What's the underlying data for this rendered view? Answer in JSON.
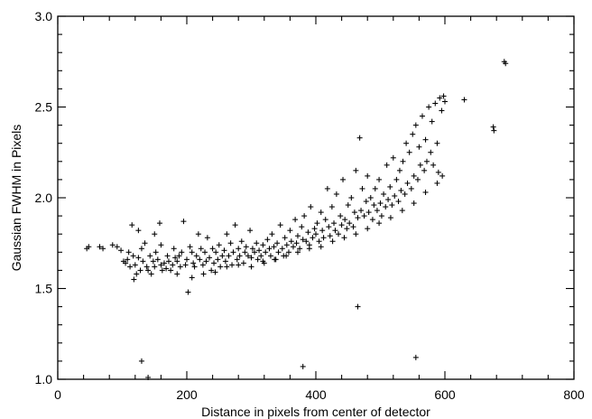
{
  "chart_data": {
    "type": "scatter",
    "title": "",
    "xlabel": "Distance in pixels from center of detector",
    "ylabel": "Gaussian FWHM in Pixels",
    "xlim": [
      0,
      800
    ],
    "ylim": [
      1.0,
      3.0
    ],
    "xticks": [
      0,
      200,
      400,
      600,
      800
    ],
    "yticks": [
      1.0,
      1.5,
      2.0,
      2.5,
      3.0
    ],
    "ytick_labels": [
      "1.0",
      "1.5",
      "2.0",
      "2.5",
      "3.0"
    ],
    "marker": "+",
    "grid": false,
    "legend": "none",
    "colors": {
      "points": "#000000",
      "axes": "#000000",
      "background": "#ffffff"
    },
    "points": [
      [
        45,
        1.72
      ],
      [
        48,
        1.73
      ],
      [
        65,
        1.73
      ],
      [
        70,
        1.72
      ],
      [
        85,
        1.74
      ],
      [
        92,
        1.73
      ],
      [
        98,
        1.71
      ],
      [
        102,
        1.65
      ],
      [
        105,
        1.64
      ],
      [
        108,
        1.66
      ],
      [
        110,
        1.7
      ],
      [
        112,
        1.62
      ],
      [
        115,
        1.85
      ],
      [
        117,
        1.68
      ],
      [
        118,
        1.55
      ],
      [
        120,
        1.63
      ],
      [
        122,
        1.58
      ],
      [
        125,
        1.67
      ],
      [
        128,
        1.6
      ],
      [
        130,
        1.72
      ],
      [
        132,
        1.65
      ],
      [
        135,
        1.75
      ],
      [
        138,
        1.62
      ],
      [
        140,
        1.6
      ],
      [
        143,
        1.68
      ],
      [
        145,
        1.58
      ],
      [
        148,
        1.65
      ],
      [
        150,
        1.62
      ],
      [
        152,
        1.7
      ],
      [
        155,
        1.66
      ],
      [
        158,
        1.86
      ],
      [
        160,
        1.63
      ],
      [
        162,
        1.6
      ],
      [
        165,
        1.64
      ],
      [
        168,
        1.61
      ],
      [
        170,
        1.68
      ],
      [
        172,
        1.65
      ],
      [
        175,
        1.6
      ],
      [
        178,
        1.63
      ],
      [
        180,
        1.72
      ],
      [
        182,
        1.67
      ],
      [
        185,
        1.65
      ],
      [
        188,
        1.68
      ],
      [
        190,
        1.62
      ],
      [
        192,
        1.7
      ],
      [
        195,
        1.87
      ],
      [
        198,
        1.63
      ],
      [
        200,
        1.66
      ],
      [
        202,
        1.48
      ],
      [
        205,
        1.73
      ],
      [
        208,
        1.7
      ],
      [
        210,
        1.64
      ],
      [
        212,
        1.62
      ],
      [
        215,
        1.68
      ],
      [
        218,
        1.8
      ],
      [
        220,
        1.66
      ],
      [
        222,
        1.72
      ],
      [
        225,
        1.63
      ],
      [
        228,
        1.7
      ],
      [
        230,
        1.65
      ],
      [
        232,
        1.78
      ],
      [
        235,
        1.67
      ],
      [
        238,
        1.6
      ],
      [
        240,
        1.72
      ],
      [
        242,
        1.64
      ],
      [
        245,
        1.7
      ],
      [
        248,
        1.66
      ],
      [
        250,
        1.74
      ],
      [
        252,
        1.62
      ],
      [
        255,
        1.68
      ],
      [
        258,
        1.71
      ],
      [
        260,
        1.65
      ],
      [
        262,
        1.8
      ],
      [
        265,
        1.68
      ],
      [
        268,
        1.75
      ],
      [
        270,
        1.63
      ],
      [
        272,
        1.7
      ],
      [
        275,
        1.85
      ],
      [
        278,
        1.66
      ],
      [
        280,
        1.72
      ],
      [
        282,
        1.68
      ],
      [
        285,
        1.76
      ],
      [
        288,
        1.64
      ],
      [
        290,
        1.7
      ],
      [
        292,
        1.73
      ],
      [
        295,
        1.68
      ],
      [
        298,
        1.82
      ],
      [
        300,
        1.67
      ],
      [
        302,
        1.72
      ],
      [
        305,
        1.7
      ],
      [
        308,
        1.75
      ],
      [
        310,
        1.66
      ],
      [
        312,
        1.71
      ],
      [
        315,
        1.68
      ],
      [
        318,
        1.74
      ],
      [
        320,
        1.64
      ],
      [
        322,
        1.7
      ],
      [
        325,
        1.77
      ],
      [
        328,
        1.72
      ],
      [
        330,
        1.68
      ],
      [
        332,
        1.8
      ],
      [
        335,
        1.73
      ],
      [
        338,
        1.66
      ],
      [
        340,
        1.75
      ],
      [
        342,
        1.7
      ],
      [
        345,
        1.85
      ],
      [
        348,
        1.72
      ],
      [
        350,
        1.68
      ],
      [
        352,
        1.78
      ],
      [
        355,
        1.74
      ],
      [
        358,
        1.7
      ],
      [
        360,
        1.82
      ],
      [
        362,
        1.76
      ],
      [
        365,
        1.73
      ],
      [
        368,
        1.88
      ],
      [
        370,
        1.75
      ],
      [
        372,
        1.79
      ],
      [
        375,
        1.72
      ],
      [
        378,
        1.84
      ],
      [
        380,
        1.77
      ],
      [
        382,
        1.9
      ],
      [
        385,
        1.76
      ],
      [
        388,
        1.81
      ],
      [
        390,
        1.74
      ],
      [
        392,
        1.95
      ],
      [
        395,
        1.78
      ],
      [
        398,
        1.83
      ],
      [
        400,
        1.8
      ],
      [
        402,
        1.86
      ],
      [
        405,
        1.76
      ],
      [
        408,
        1.92
      ],
      [
        410,
        1.82
      ],
      [
        412,
        1.78
      ],
      [
        415,
        1.88
      ],
      [
        418,
        2.05
      ],
      [
        420,
        1.84
      ],
      [
        422,
        1.79
      ],
      [
        425,
        1.95
      ],
      [
        428,
        1.86
      ],
      [
        430,
        1.82
      ],
      [
        432,
        2.02
      ],
      [
        435,
        1.8
      ],
      [
        438,
        1.9
      ],
      [
        440,
        1.85
      ],
      [
        442,
        2.1
      ],
      [
        445,
        1.88
      ],
      [
        448,
        1.83
      ],
      [
        450,
        1.96
      ],
      [
        452,
        1.86
      ],
      [
        455,
        2.0
      ],
      [
        458,
        1.84
      ],
      [
        460,
        1.92
      ],
      [
        462,
        2.15
      ],
      [
        465,
        1.89
      ],
      [
        468,
        2.33
      ],
      [
        470,
        1.93
      ],
      [
        472,
        2.05
      ],
      [
        475,
        1.9
      ],
      [
        478,
        1.98
      ],
      [
        480,
        2.12
      ],
      [
        482,
        1.92
      ],
      [
        485,
        2.0
      ],
      [
        488,
        1.88
      ],
      [
        490,
        1.96
      ],
      [
        492,
        2.05
      ],
      [
        495,
        1.93
      ],
      [
        498,
        2.1
      ],
      [
        500,
        1.97
      ],
      [
        502,
        1.9
      ],
      [
        505,
        2.02
      ],
      [
        508,
        1.95
      ],
      [
        510,
        2.18
      ],
      [
        512,
        1.99
      ],
      [
        515,
        2.06
      ],
      [
        518,
        1.96
      ],
      [
        520,
        2.22
      ],
      [
        522,
        2.01
      ],
      [
        525,
        2.1
      ],
      [
        528,
        1.98
      ],
      [
        530,
        2.15
      ],
      [
        532,
        2.04
      ],
      [
        535,
        2.2
      ],
      [
        538,
        2.02
      ],
      [
        540,
        2.3
      ],
      [
        542,
        2.08
      ],
      [
        545,
        2.25
      ],
      [
        548,
        2.05
      ],
      [
        550,
        2.35
      ],
      [
        552,
        2.12
      ],
      [
        555,
        2.4
      ],
      [
        558,
        2.1
      ],
      [
        560,
        2.28
      ],
      [
        562,
        2.18
      ],
      [
        565,
        2.45
      ],
      [
        568,
        2.15
      ],
      [
        570,
        2.32
      ],
      [
        572,
        2.2
      ],
      [
        575,
        2.5
      ],
      [
        578,
        2.25
      ],
      [
        580,
        2.42
      ],
      [
        582,
        2.18
      ],
      [
        585,
        2.52
      ],
      [
        588,
        2.3
      ],
      [
        590,
        2.14
      ],
      [
        592,
        2.55
      ],
      [
        595,
        2.48
      ],
      [
        598,
        2.56
      ],
      [
        600,
        2.53
      ],
      [
        630,
        2.54
      ],
      [
        675,
        2.39
      ],
      [
        676,
        2.37
      ],
      [
        692,
        2.75
      ],
      [
        694,
        2.74
      ],
      [
        130,
        1.1
      ],
      [
        140,
        1.01
      ],
      [
        380,
        1.07
      ],
      [
        465,
        1.4
      ],
      [
        555,
        1.12
      ],
      [
        125,
        1.82
      ],
      [
        150,
        1.8
      ],
      [
        160,
        1.74
      ],
      [
        185,
        1.58
      ],
      [
        208,
        1.56
      ],
      [
        226,
        1.58
      ],
      [
        244,
        1.59
      ],
      [
        262,
        1.62
      ],
      [
        280,
        1.63
      ],
      [
        300,
        1.62
      ],
      [
        318,
        1.65
      ],
      [
        336,
        1.66
      ],
      [
        354,
        1.68
      ],
      [
        372,
        1.7
      ],
      [
        390,
        1.72
      ],
      [
        408,
        1.73
      ],
      [
        426,
        1.76
      ],
      [
        444,
        1.78
      ],
      [
        462,
        1.8
      ],
      [
        480,
        1.83
      ],
      [
        498,
        1.86
      ],
      [
        516,
        1.89
      ],
      [
        534,
        1.93
      ],
      [
        552,
        1.97
      ],
      [
        570,
        2.03
      ],
      [
        588,
        2.08
      ],
      [
        596,
        2.12
      ]
    ]
  }
}
